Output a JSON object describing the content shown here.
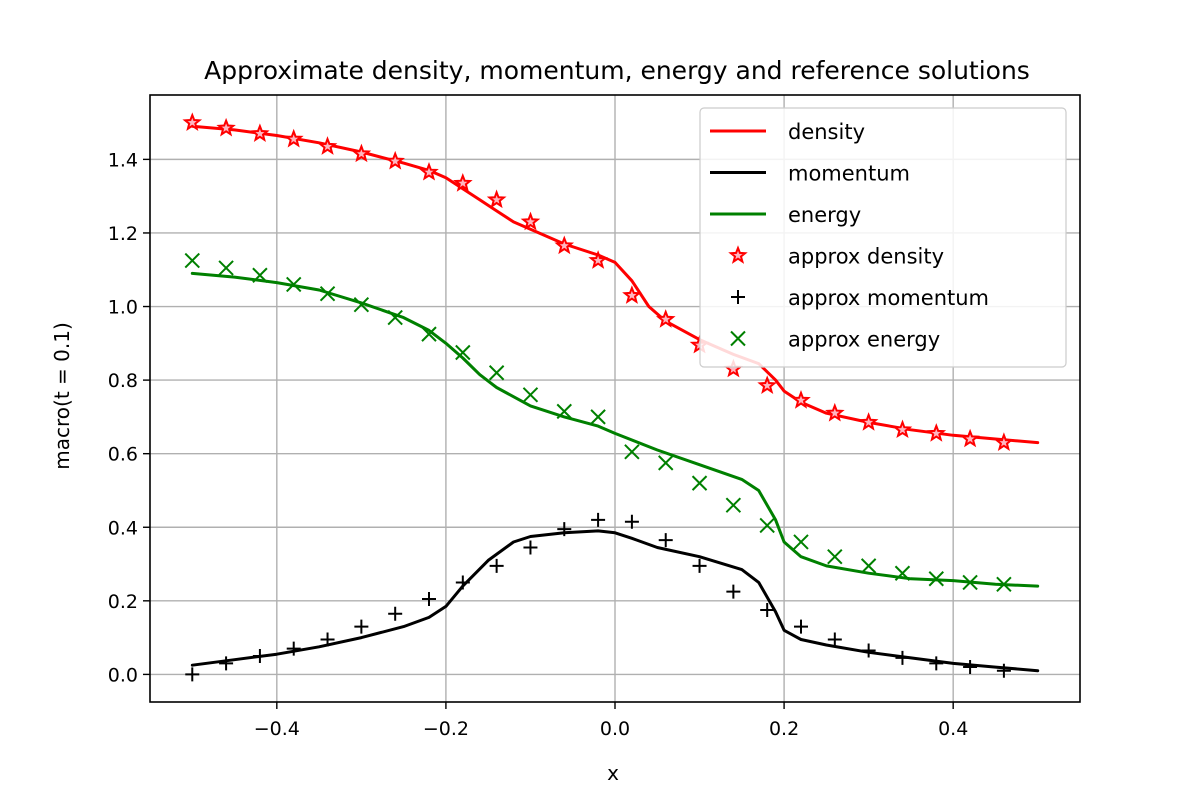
{
  "chart_data": {
    "type": "line",
    "title": "Approximate density, momentum, energy and reference solutions",
    "xlabel": "x",
    "ylabel": "macro(t = 0.1)",
    "xlim": [
      -0.55,
      0.55
    ],
    "ylim": [
      -0.075,
      1.575
    ],
    "xticks": [
      -0.4,
      -0.2,
      0.0,
      0.2,
      0.4
    ],
    "xtick_labels": [
      "−0.4",
      "−0.2",
      "0.0",
      "0.2",
      "0.4"
    ],
    "yticks": [
      0.0,
      0.2,
      0.4,
      0.6,
      0.8,
      1.0,
      1.2,
      1.4
    ],
    "ytick_labels": [
      "0.0",
      "0.2",
      "0.4",
      "0.6",
      "0.8",
      "1.0",
      "1.2",
      "1.4"
    ],
    "grid": true,
    "legend_position": "top-right",
    "series": [
      {
        "name": "density",
        "kind": "line",
        "color": "#ff0000",
        "x": [
          -0.5,
          -0.45,
          -0.4,
          -0.35,
          -0.3,
          -0.25,
          -0.22,
          -0.2,
          -0.18,
          -0.16,
          -0.14,
          -0.12,
          -0.1,
          -0.06,
          -0.02,
          0.0,
          0.02,
          0.04,
          0.06,
          0.1,
          0.14,
          0.17,
          0.19,
          0.2,
          0.22,
          0.25,
          0.3,
          0.35,
          0.4,
          0.45,
          0.5
        ],
        "y": [
          1.49,
          1.48,
          1.465,
          1.445,
          1.42,
          1.39,
          1.37,
          1.35,
          1.32,
          1.29,
          1.26,
          1.23,
          1.21,
          1.17,
          1.14,
          1.12,
          1.07,
          1.0,
          0.96,
          0.91,
          0.87,
          0.845,
          0.8,
          0.77,
          0.74,
          0.71,
          0.685,
          0.665,
          0.65,
          0.64,
          0.63
        ]
      },
      {
        "name": "momentum",
        "kind": "line",
        "color": "#000000",
        "x": [
          -0.5,
          -0.45,
          -0.4,
          -0.35,
          -0.3,
          -0.25,
          -0.22,
          -0.2,
          -0.18,
          -0.15,
          -0.12,
          -0.1,
          -0.06,
          -0.02,
          0.0,
          0.02,
          0.05,
          0.1,
          0.15,
          0.17,
          0.19,
          0.2,
          0.22,
          0.25,
          0.3,
          0.35,
          0.4,
          0.45,
          0.5
        ],
        "y": [
          0.025,
          0.04,
          0.055,
          0.075,
          0.1,
          0.13,
          0.155,
          0.185,
          0.24,
          0.31,
          0.36,
          0.375,
          0.385,
          0.39,
          0.385,
          0.37,
          0.345,
          0.32,
          0.285,
          0.25,
          0.17,
          0.12,
          0.095,
          0.08,
          0.06,
          0.045,
          0.03,
          0.02,
          0.01
        ]
      },
      {
        "name": "energy",
        "kind": "line",
        "color": "#008000",
        "x": [
          -0.5,
          -0.45,
          -0.4,
          -0.35,
          -0.3,
          -0.25,
          -0.22,
          -0.2,
          -0.18,
          -0.16,
          -0.14,
          -0.12,
          -0.1,
          -0.06,
          -0.02,
          0.0,
          0.05,
          0.1,
          0.15,
          0.17,
          0.19,
          0.2,
          0.22,
          0.25,
          0.3,
          0.35,
          0.4,
          0.45,
          0.5
        ],
        "y": [
          1.09,
          1.08,
          1.065,
          1.045,
          1.01,
          0.97,
          0.935,
          0.9,
          0.86,
          0.815,
          0.78,
          0.755,
          0.73,
          0.7,
          0.675,
          0.655,
          0.61,
          0.57,
          0.53,
          0.5,
          0.42,
          0.36,
          0.32,
          0.295,
          0.275,
          0.26,
          0.255,
          0.245,
          0.24
        ]
      },
      {
        "name": "approx density",
        "kind": "marker",
        "marker": "star",
        "color": "#ff0000",
        "x": [
          -0.5,
          -0.46,
          -0.42,
          -0.38,
          -0.34,
          -0.3,
          -0.26,
          -0.22,
          -0.18,
          -0.14,
          -0.1,
          -0.06,
          -0.02,
          0.02,
          0.06,
          0.1,
          0.14,
          0.18,
          0.22,
          0.26,
          0.3,
          0.34,
          0.38,
          0.42,
          0.46
        ],
        "y": [
          1.5,
          1.485,
          1.47,
          1.455,
          1.435,
          1.415,
          1.395,
          1.365,
          1.335,
          1.29,
          1.23,
          1.165,
          1.125,
          1.03,
          0.965,
          0.895,
          0.83,
          0.785,
          0.745,
          0.71,
          0.685,
          0.665,
          0.655,
          0.64,
          0.63
        ]
      },
      {
        "name": "approx momentum",
        "kind": "marker",
        "marker": "plus",
        "color": "#000000",
        "x": [
          -0.5,
          -0.46,
          -0.42,
          -0.38,
          -0.34,
          -0.3,
          -0.26,
          -0.22,
          -0.18,
          -0.14,
          -0.1,
          -0.06,
          -0.02,
          0.02,
          0.06,
          0.1,
          0.14,
          0.18,
          0.22,
          0.26,
          0.3,
          0.34,
          0.38,
          0.42,
          0.46
        ],
        "y": [
          0.0,
          0.03,
          0.05,
          0.07,
          0.095,
          0.13,
          0.165,
          0.205,
          0.25,
          0.295,
          0.345,
          0.395,
          0.42,
          0.415,
          0.365,
          0.295,
          0.225,
          0.175,
          0.13,
          0.095,
          0.065,
          0.045,
          0.03,
          0.02,
          0.01
        ]
      },
      {
        "name": "approx energy",
        "kind": "marker",
        "marker": "x",
        "color": "#008000",
        "x": [
          -0.5,
          -0.46,
          -0.42,
          -0.38,
          -0.34,
          -0.3,
          -0.26,
          -0.22,
          -0.18,
          -0.14,
          -0.1,
          -0.06,
          -0.02,
          0.02,
          0.06,
          0.1,
          0.14,
          0.18,
          0.22,
          0.26,
          0.3,
          0.34,
          0.38,
          0.42,
          0.46
        ],
        "y": [
          1.125,
          1.105,
          1.085,
          1.06,
          1.035,
          1.005,
          0.97,
          0.925,
          0.875,
          0.82,
          0.76,
          0.715,
          0.7,
          0.605,
          0.575,
          0.52,
          0.46,
          0.405,
          0.36,
          0.32,
          0.295,
          0.275,
          0.26,
          0.25,
          0.245
        ]
      }
    ]
  }
}
